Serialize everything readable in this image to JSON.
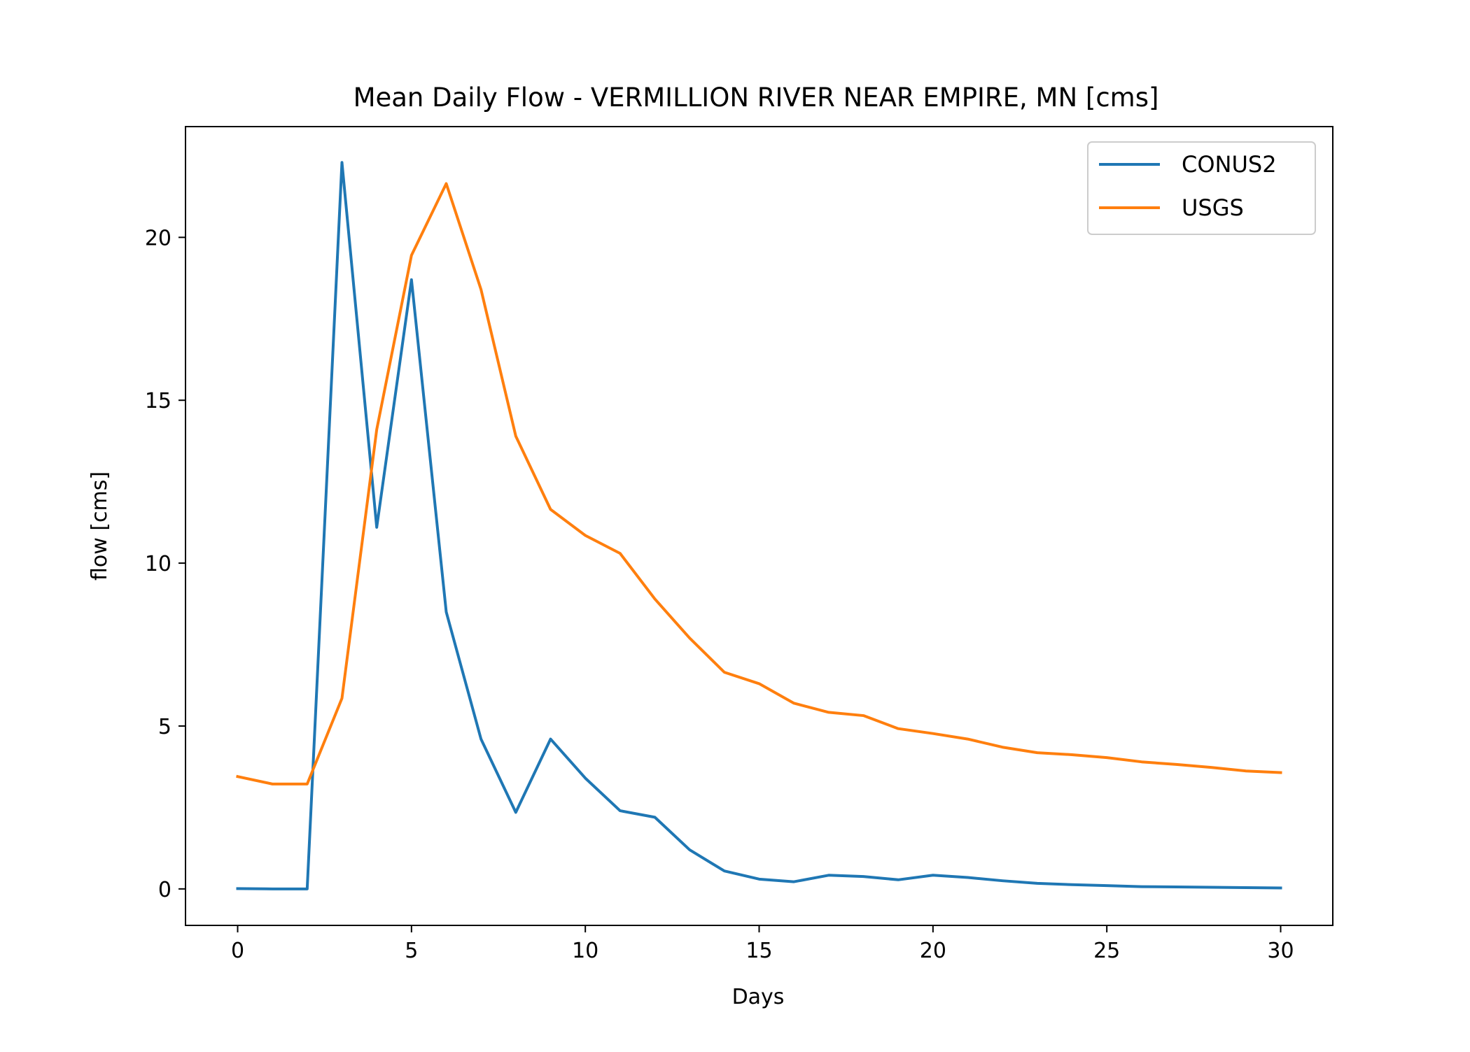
{
  "chart_data": {
    "type": "line",
    "title": "Mean Daily Flow - VERMILLION RIVER NEAR EMPIRE, MN [cms]",
    "xlabel": "Days",
    "ylabel": "flow [cms]",
    "xlim": [
      -1.5,
      31.5
    ],
    "ylim": [
      -1.12,
      23.4
    ],
    "xticks": [
      0,
      5,
      10,
      15,
      20,
      25,
      30
    ],
    "yticks": [
      0,
      5,
      10,
      15,
      20
    ],
    "grid": false,
    "legend_position": "top-right",
    "x": [
      0,
      1,
      2,
      3,
      4,
      5,
      6,
      7,
      8,
      9,
      10,
      11,
      12,
      13,
      14,
      15,
      16,
      17,
      18,
      19,
      20,
      21,
      22,
      23,
      24,
      25,
      26,
      27,
      28,
      29,
      30
    ],
    "series": [
      {
        "name": "CONUS2",
        "color": "#1f77b4",
        "values": [
          0.01,
          0.0,
          0.0,
          22.3,
          11.1,
          18.7,
          8.5,
          4.6,
          2.35,
          4.6,
          3.4,
          2.4,
          2.2,
          1.2,
          0.55,
          0.3,
          0.22,
          0.42,
          0.38,
          0.28,
          0.42,
          0.35,
          0.25,
          0.17,
          0.13,
          0.1,
          0.07,
          0.06,
          0.05,
          0.04,
          0.03
        ]
      },
      {
        "name": "USGS",
        "color": "#ff7f0e",
        "values": [
          3.45,
          3.22,
          3.22,
          5.85,
          14.1,
          19.45,
          21.65,
          18.4,
          13.9,
          11.65,
          10.85,
          10.3,
          8.9,
          7.7,
          6.65,
          6.3,
          5.7,
          5.42,
          5.32,
          4.92,
          4.77,
          4.6,
          4.35,
          4.18,
          4.12,
          4.03,
          3.9,
          3.82,
          3.73,
          3.62,
          3.57
        ]
      }
    ]
  }
}
